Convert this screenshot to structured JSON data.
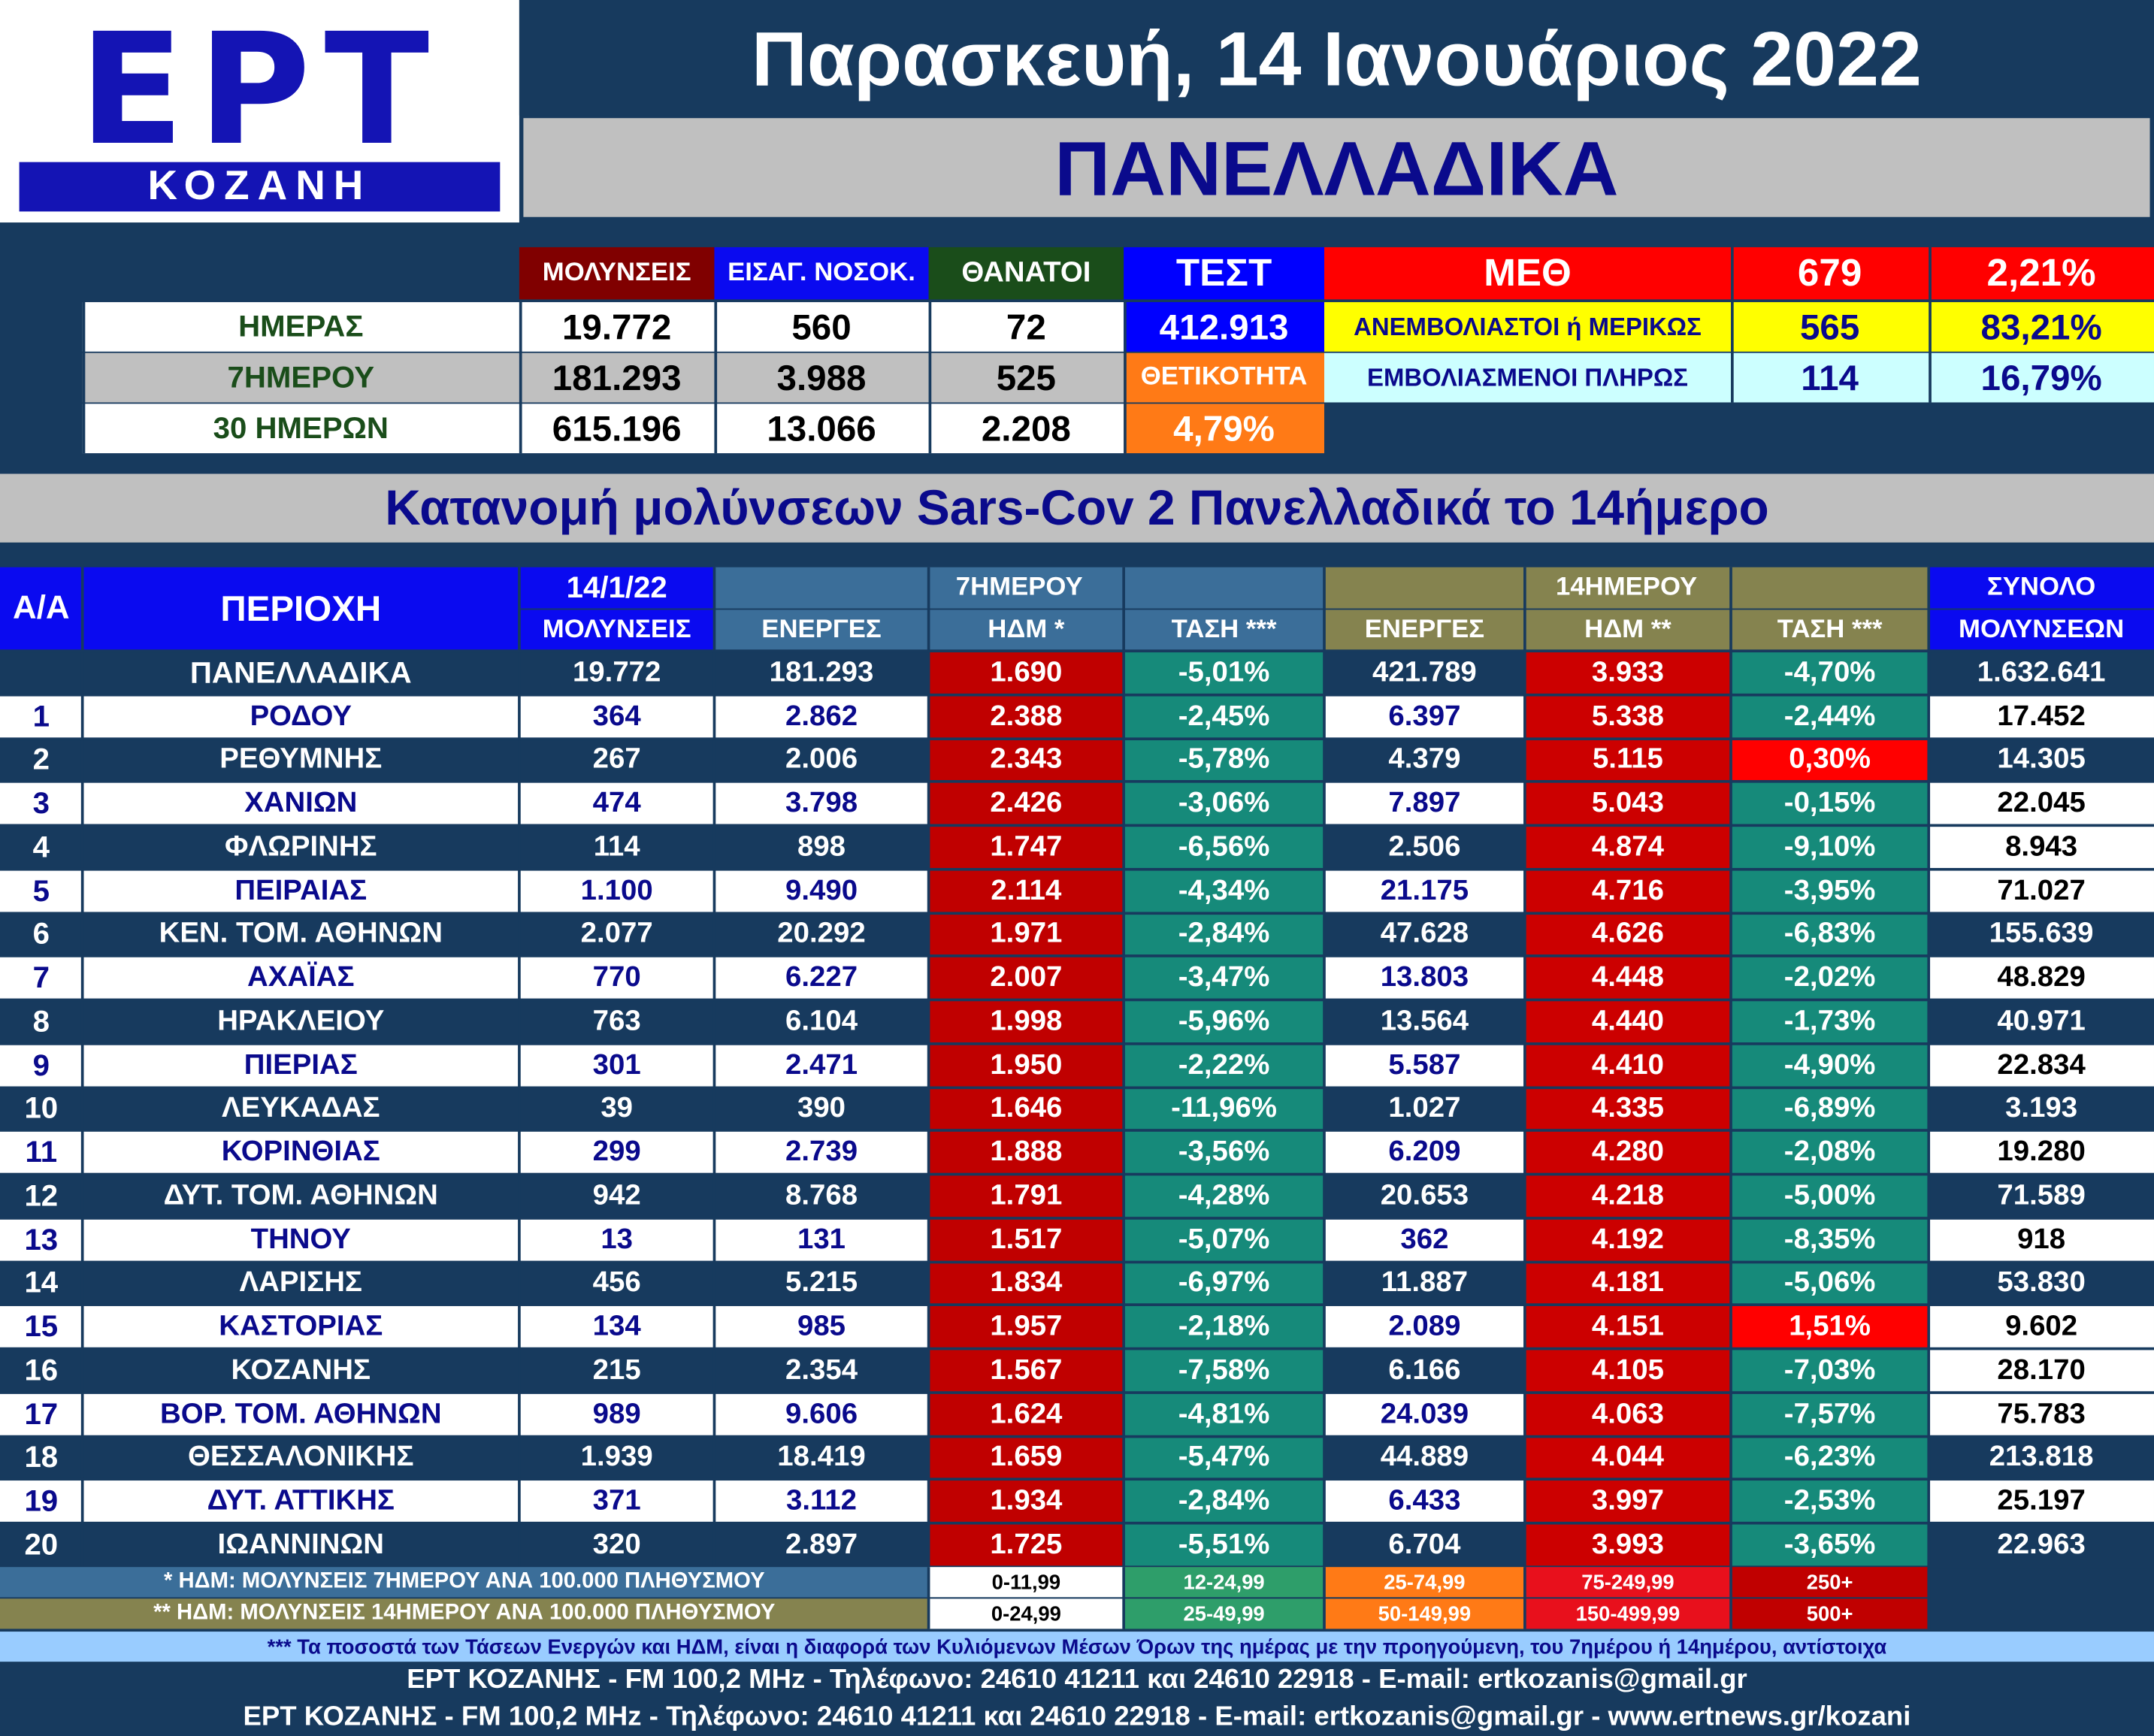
{
  "logo": {
    "ept": "ΕΡΤ",
    "city": "ΚΟΖΑΝΗ"
  },
  "header": {
    "date": "Παρασκευή, 14 Ιανουάριος 2022",
    "region": "ΠΑΝΕΛΛΑΔΙΚΑ"
  },
  "summary": {
    "col_infections": "ΜΟΛΥΝΣΕΙΣ",
    "col_admissions": "ΕΙΣΑΓ. ΝΟΣΟΚ.",
    "col_deaths": "ΘΑΝΑΤΟΙ",
    "col_tests": "ΤΕΣΤ",
    "rows": [
      {
        "label": "ΗΜΕΡΑΣ",
        "infections": "19.772",
        "admissions": "560",
        "deaths": "72"
      },
      {
        "label": "7ΗΜΕΡΟΥ",
        "infections": "181.293",
        "admissions": "3.988",
        "deaths": "525"
      },
      {
        "label": "30 ΗΜΕΡΩΝ",
        "infections": "615.196",
        "admissions": "13.066",
        "deaths": "2.208"
      }
    ],
    "tests_value": "412.913",
    "positivity_label": "ΘΕΤΙΚΟΤΗΤΑ",
    "positivity_value": "4,79%",
    "icu": {
      "label": "ΜΕΘ",
      "count": "679",
      "percent": "2,21%",
      "unvacc_label": "ΑΝΕΜΒΟΛΙΑΣΤΟΙ ή ΜΕΡΙΚΩΣ",
      "unvacc_count": "565",
      "unvacc_percent": "83,21%",
      "vacc_label": "ΕΜΒΟΛΙΑΣΜΕΝΟΙ ΠΛΗΡΩΣ",
      "vacc_count": "114",
      "vacc_percent": "16,79%"
    }
  },
  "section_title": "Κατανομή μολύνσεων Sars-Cov 2 Πανελλαδικά το 14ήμερο",
  "table": {
    "headers": {
      "aa": "Α/Α",
      "region": "ΠΕΡΙΟΧΗ",
      "date": "14/1/22",
      "infections": "ΜΟΛΥΝΣΕΙΣ",
      "group7": "7ΗΜΕΡΟΥ",
      "active7": "ΕΝΕΡΓΕΣ",
      "hdm7": "ΗΔΜ *",
      "trend7": "ΤΑΣΗ ***",
      "group14": "14ΗΜΕΡΟΥ",
      "active14": "ΕΝΕΡΓΕΣ",
      "hdm14": "ΗΔΜ **",
      "trend14": "ΤΑΣΗ ***",
      "total": "ΣΥΝΟΛΟ",
      "total2": "ΜΟΛΥΝΣΕΩΝ"
    },
    "national": {
      "region": "ΠΑΝΕΛΛΑΔΙΚΑ",
      "infections": "19.772",
      "active7": "181.293",
      "hdm7": "1.690",
      "trend7": "-5,01%",
      "active14": "421.789",
      "hdm14": "3.933",
      "trend14": "-4,70%",
      "total": "1.632.641"
    },
    "rows": [
      {
        "aa": "1",
        "region": "ΡΟΔΟΥ",
        "infections": "364",
        "active7": "2.862",
        "hdm7": "2.388",
        "trend7": "-2,45%",
        "active14": "6.397",
        "hdm14": "5.338",
        "trend14": "-2,44%",
        "total": "17.452"
      },
      {
        "aa": "2",
        "region": "ΡΕΘΥΜΝΗΣ",
        "infections": "267",
        "active7": "2.006",
        "hdm7": "2.343",
        "trend7": "-5,78%",
        "active14": "4.379",
        "hdm14": "5.115",
        "trend14": "0,30%",
        "total": "14.305"
      },
      {
        "aa": "3",
        "region": "ΧΑΝΙΩΝ",
        "infections": "474",
        "active7": "3.798",
        "hdm7": "2.426",
        "trend7": "-3,06%",
        "active14": "7.897",
        "hdm14": "5.043",
        "trend14": "-0,15%",
        "total": "22.045"
      },
      {
        "aa": "4",
        "region": "ΦΛΩΡΙΝΗΣ",
        "infections": "114",
        "active7": "898",
        "hdm7": "1.747",
        "trend7": "-6,56%",
        "active14": "2.506",
        "hdm14": "4.874",
        "trend14": "-9,10%",
        "total": "8.943"
      },
      {
        "aa": "5",
        "region": "ΠΕΙΡΑΙΑΣ",
        "infections": "1.100",
        "active7": "9.490",
        "hdm7": "2.114",
        "trend7": "-4,34%",
        "active14": "21.175",
        "hdm14": "4.716",
        "trend14": "-3,95%",
        "total": "71.027"
      },
      {
        "aa": "6",
        "region": "ΚΕΝ. ΤΟΜ. ΑΘΗΝΩΝ",
        "infections": "2.077",
        "active7": "20.292",
        "hdm7": "1.971",
        "trend7": "-2,84%",
        "active14": "47.628",
        "hdm14": "4.626",
        "trend14": "-6,83%",
        "total": "155.639"
      },
      {
        "aa": "7",
        "region": "ΑΧΑΪΑΣ",
        "infections": "770",
        "active7": "6.227",
        "hdm7": "2.007",
        "trend7": "-3,47%",
        "active14": "13.803",
        "hdm14": "4.448",
        "trend14": "-2,02%",
        "total": "48.829"
      },
      {
        "aa": "8",
        "region": "ΗΡΑΚΛΕΙΟΥ",
        "infections": "763",
        "active7": "6.104",
        "hdm7": "1.998",
        "trend7": "-5,96%",
        "active14": "13.564",
        "hdm14": "4.440",
        "trend14": "-1,73%",
        "total": "40.971"
      },
      {
        "aa": "9",
        "region": "ΠΙΕΡΙΑΣ",
        "infections": "301",
        "active7": "2.471",
        "hdm7": "1.950",
        "trend7": "-2,22%",
        "active14": "5.587",
        "hdm14": "4.410",
        "trend14": "-4,90%",
        "total": "22.834"
      },
      {
        "aa": "10",
        "region": "ΛΕΥΚΑΔΑΣ",
        "infections": "39",
        "active7": "390",
        "hdm7": "1.646",
        "trend7": "-11,96%",
        "active14": "1.027",
        "hdm14": "4.335",
        "trend14": "-6,89%",
        "total": "3.193"
      },
      {
        "aa": "11",
        "region": "ΚΟΡΙΝΘΙΑΣ",
        "infections": "299",
        "active7": "2.739",
        "hdm7": "1.888",
        "trend7": "-3,56%",
        "active14": "6.209",
        "hdm14": "4.280",
        "trend14": "-2,08%",
        "total": "19.280"
      },
      {
        "aa": "12",
        "region": "ΔΥΤ. ΤΟΜ. ΑΘΗΝΩΝ",
        "infections": "942",
        "active7": "8.768",
        "hdm7": "1.791",
        "trend7": "-4,28%",
        "active14": "20.653",
        "hdm14": "4.218",
        "trend14": "-5,00%",
        "total": "71.589"
      },
      {
        "aa": "13",
        "region": "ΤΗΝΟΥ",
        "infections": "13",
        "active7": "131",
        "hdm7": "1.517",
        "trend7": "-5,07%",
        "active14": "362",
        "hdm14": "4.192",
        "trend14": "-8,35%",
        "total": "918"
      },
      {
        "aa": "14",
        "region": "ΛΑΡΙΣΗΣ",
        "infections": "456",
        "active7": "5.215",
        "hdm7": "1.834",
        "trend7": "-6,97%",
        "active14": "11.887",
        "hdm14": "4.181",
        "trend14": "-5,06%",
        "total": "53.830"
      },
      {
        "aa": "15",
        "region": "ΚΑΣΤΟΡΙΑΣ",
        "infections": "134",
        "active7": "985",
        "hdm7": "1.957",
        "trend7": "-2,18%",
        "active14": "2.089",
        "hdm14": "4.151",
        "trend14": "1,51%",
        "total": "9.602"
      },
      {
        "aa": "16",
        "region": "ΚΟΖΑΝΗΣ",
        "infections": "215",
        "active7": "2.354",
        "hdm7": "1.567",
        "trend7": "-7,58%",
        "active14": "6.166",
        "hdm14": "4.105",
        "trend14": "-7,03%",
        "total": "28.170"
      },
      {
        "aa": "17",
        "region": "ΒΟΡ. ΤΟΜ. ΑΘΗΝΩΝ",
        "infections": "989",
        "active7": "9.606",
        "hdm7": "1.624",
        "trend7": "-4,81%",
        "active14": "24.039",
        "hdm14": "4.063",
        "trend14": "-7,57%",
        "total": "75.783"
      },
      {
        "aa": "18",
        "region": "ΘΕΣΣΑΛΟΝΙΚΗΣ",
        "infections": "1.939",
        "active7": "18.419",
        "hdm7": "1.659",
        "trend7": "-5,47%",
        "active14": "44.889",
        "hdm14": "4.044",
        "trend14": "-6,23%",
        "total": "213.818"
      },
      {
        "aa": "19",
        "region": "ΔΥΤ. ΑΤΤΙΚΗΣ",
        "infections": "371",
        "active7": "3.112",
        "hdm7": "1.934",
        "trend7": "-2,84%",
        "active14": "6.433",
        "hdm14": "3.997",
        "trend14": "-2,53%",
        "total": "25.197"
      },
      {
        "aa": "20",
        "region": "ΙΩΑΝΝΙΝΩΝ",
        "infections": "320",
        "active7": "2.897",
        "hdm7": "1.725",
        "trend7": "-5,51%",
        "active14": "6.704",
        "hdm14": "3.993",
        "trend14": "-3,65%",
        "total": "22.963"
      }
    ]
  },
  "legend": {
    "note7": "* ΗΔΜ: ΜΟΛΥΝΣΕΙΣ 7ΗΜΕΡΟΥ ΑΝΑ 100.000 ΠΛΗΘΥΣΜΟΥ",
    "ranges7": [
      "0-11,99",
      "12-24,99",
      "25-74,99",
      "75-249,99",
      "250+"
    ],
    "note14": "** ΗΔΜ: ΜΟΛΥΝΣΕΙΣ 14ΗΜΕΡΟΥ ΑΝΑ 100.000 ΠΛΗΘΥΣΜΟΥ",
    "ranges14": [
      "0-24,99",
      "25-49,99",
      "50-149,99",
      "150-499,99",
      "500+"
    ],
    "colors": [
      "#ffffff",
      "#2e9e6a",
      "#ff7a16",
      "#e8101c",
      "#c00000"
    ]
  },
  "footer": {
    "note": "*** Τα ποσοστά των Τάσεων Ενεργών και ΗΔΜ, είναι η διαφορά των Κυλιόμενων Μέσων Όρων της ημέρας με την προηγούμενη, του 7ημέρου ή 14ημέρου, αντίστοιχα",
    "line1": "ΕΡΤ ΚΟΖΑΝΗΣ - FM 100,2 MHz - Τηλέφωνο:  24610 41211 και 24610 22918 - E-mail: ertkozanis@gmail.gr",
    "line2": "ΕΡΤ ΚΟΖΑΝΗΣ - FM 100,2 MHz - Τηλέφωνο:  24610 41211 και 24610 22918 - E-mail: ertkozanis@gmail.gr - www.ertnews.gr/kozani"
  },
  "colors": {
    "background": "#173a5e",
    "hdm7_cell": "#c00000",
    "hdm14_cell": "#cc0000",
    "trend_cell": "#168a7a",
    "trend_positive": "#ff0000",
    "header_blue": "#0a0af0",
    "header_steel": "#3b6e99",
    "header_olive": "#85834f"
  }
}
